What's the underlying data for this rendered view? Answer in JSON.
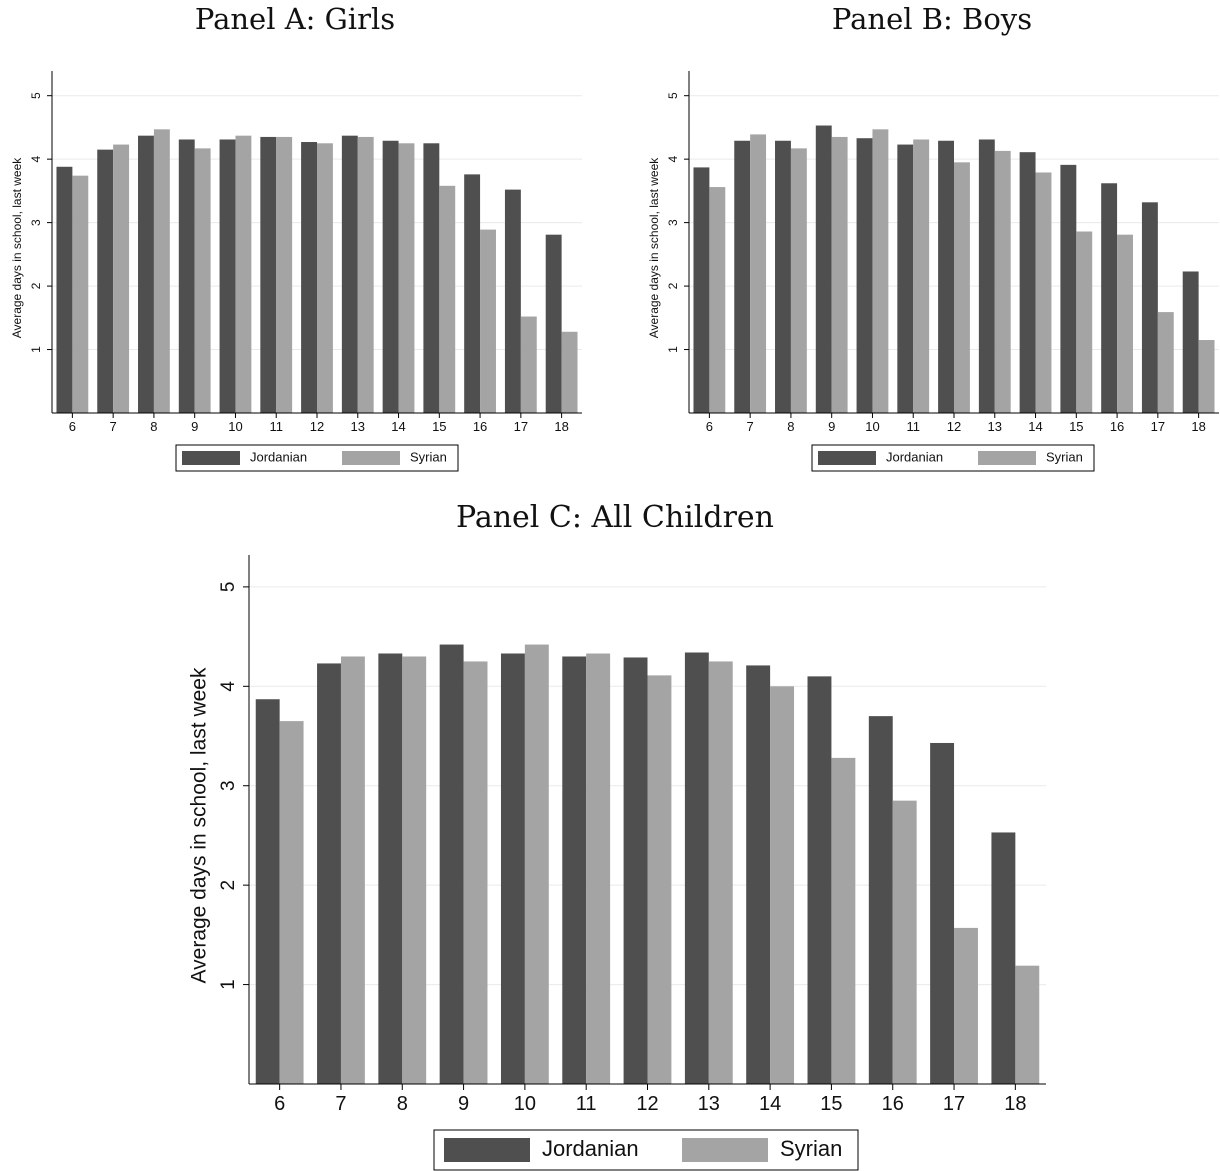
{
  "colors": {
    "jordanian": "#4f4f4f",
    "syrian": "#a4a4a4",
    "grid": "#eaeaea",
    "axis": "#000000"
  },
  "chart_data": [
    {
      "type": "bar",
      "title": "Panel A: Girls",
      "ylabel": "Average days in school, last week",
      "xlabel": "",
      "categories": [
        "6",
        "7",
        "8",
        "9",
        "10",
        "11",
        "12",
        "13",
        "14",
        "15",
        "16",
        "17",
        "18"
      ],
      "yticks": [
        "1",
        "2",
        "3",
        "4",
        "5"
      ],
      "ylim": [
        0,
        5.2
      ],
      "grid": true,
      "legend_position": "bottom",
      "series": [
        {
          "name": "Jordanian",
          "values": [
            3.88,
            4.15,
            4.37,
            4.31,
            4.31,
            4.35,
            4.27,
            4.37,
            4.29,
            4.25,
            3.76,
            3.52,
            2.81
          ]
        },
        {
          "name": "Syrian",
          "values": [
            3.74,
            4.23,
            4.47,
            4.17,
            4.37,
            4.35,
            4.25,
            4.35,
            4.25,
            3.58,
            2.89,
            1.52,
            1.28
          ]
        }
      ]
    },
    {
      "type": "bar",
      "title": "Panel B: Boys",
      "ylabel": "Average days in school, last week",
      "xlabel": "",
      "categories": [
        "6",
        "7",
        "8",
        "9",
        "10",
        "11",
        "12",
        "13",
        "14",
        "15",
        "16",
        "17",
        "18"
      ],
      "yticks": [
        "1",
        "2",
        "3",
        "4",
        "5"
      ],
      "ylim": [
        0,
        5.2
      ],
      "grid": true,
      "legend_position": "bottom",
      "series": [
        {
          "name": "Jordanian",
          "values": [
            3.87,
            4.29,
            4.29,
            4.53,
            4.33,
            4.23,
            4.29,
            4.31,
            4.11,
            3.91,
            3.62,
            3.32,
            2.23
          ]
        },
        {
          "name": "Syrian",
          "values": [
            3.56,
            4.39,
            4.17,
            4.35,
            4.47,
            4.31,
            3.95,
            4.13,
            3.79,
            2.86,
            2.81,
            1.59,
            1.15
          ]
        }
      ]
    },
    {
      "type": "bar",
      "title": "Panel C: All Children",
      "ylabel": "Average days in school, last week",
      "xlabel": "",
      "categories": [
        "6",
        "7",
        "8",
        "9",
        "10",
        "11",
        "12",
        "13",
        "14",
        "15",
        "16",
        "17",
        "18"
      ],
      "yticks": [
        "1",
        "2",
        "3",
        "4",
        "5"
      ],
      "ylim": [
        0,
        5.2
      ],
      "grid": true,
      "legend_position": "bottom",
      "series": [
        {
          "name": "Jordanian",
          "values": [
            3.87,
            4.23,
            4.33,
            4.42,
            4.33,
            4.3,
            4.29,
            4.34,
            4.21,
            4.1,
            3.7,
            3.43,
            2.53
          ]
        },
        {
          "name": "Syrian",
          "values": [
            3.65,
            4.3,
            4.3,
            4.25,
            4.42,
            4.33,
            4.11,
            4.25,
            4.0,
            3.28,
            2.85,
            1.57,
            1.19
          ]
        }
      ]
    }
  ]
}
